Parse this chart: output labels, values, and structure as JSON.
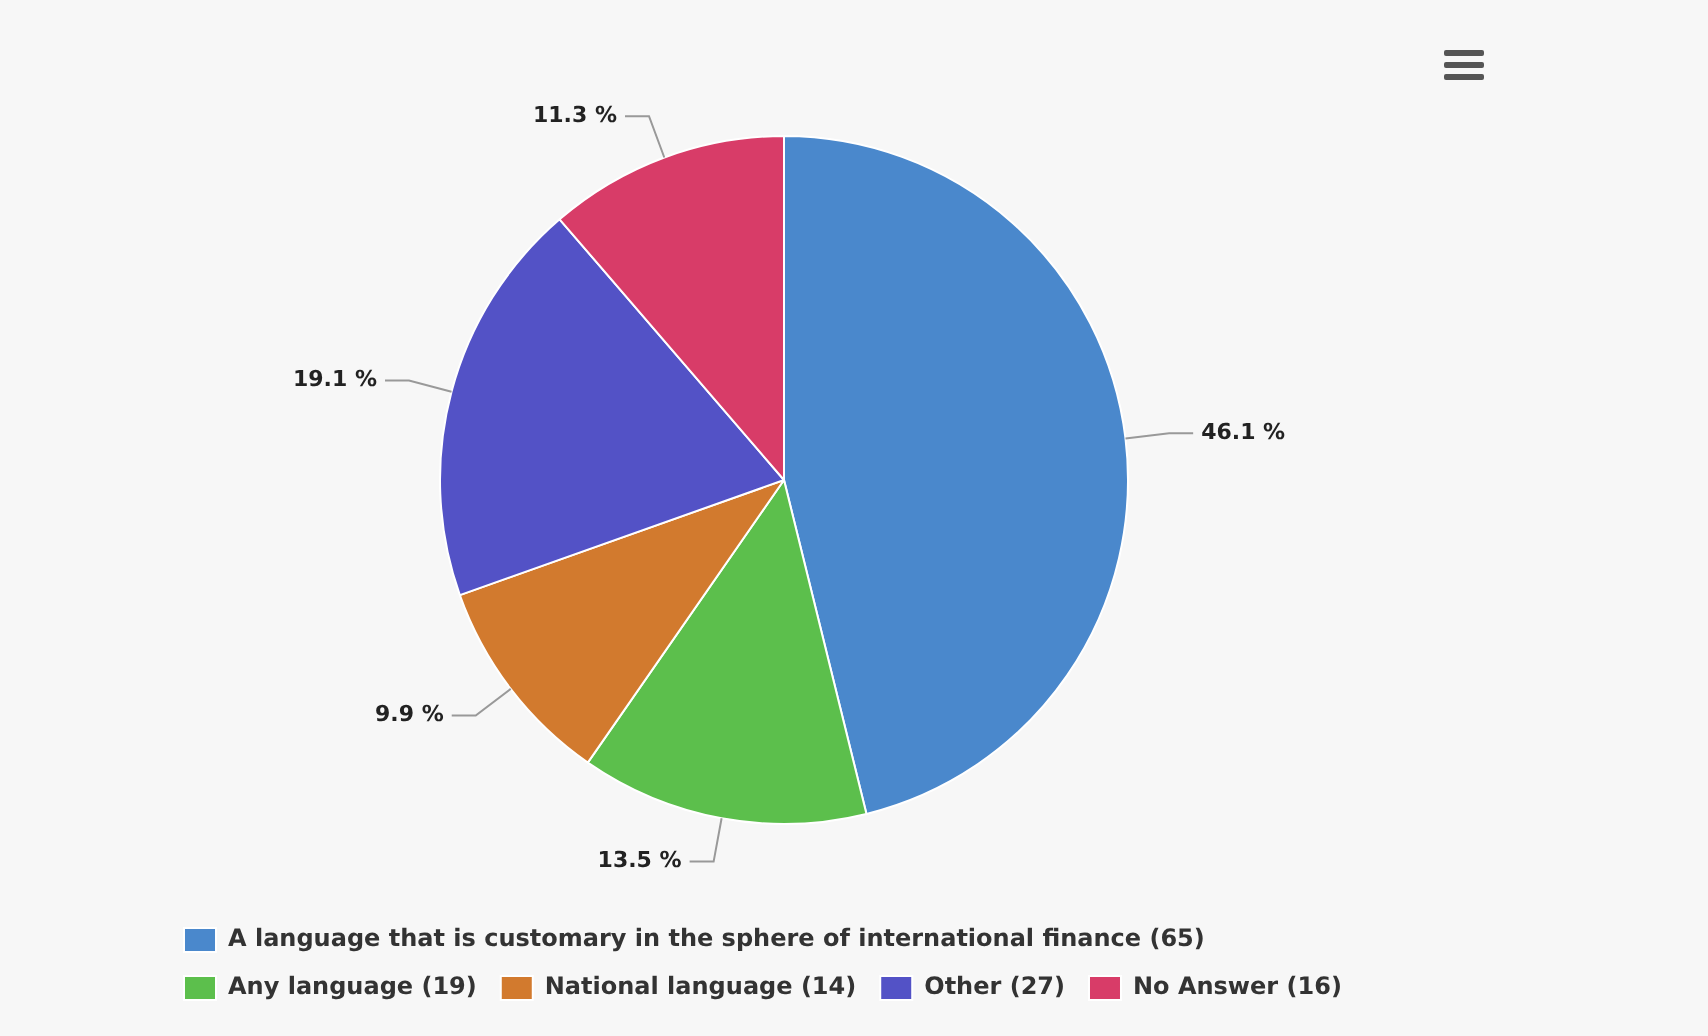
{
  "chart_data": {
    "type": "pie",
    "categories": [
      "A language that is customary in the sphere of international finance (65)",
      "Any language (19)",
      "National language (14)",
      "Other (27)",
      "No Answer (16)"
    ],
    "values": [
      46.1,
      13.5,
      9.9,
      19.1,
      11.3
    ],
    "colors": [
      "#4a88cc",
      "#5cbf4c",
      "#d27a2e",
      "#5352c6",
      "#d83c68"
    ],
    "value_labels": [
      "46.1 %",
      "13.5 %",
      "9.9 %",
      "19.1 %",
      "11.3 %"
    ],
    "legend": "bottom"
  }
}
